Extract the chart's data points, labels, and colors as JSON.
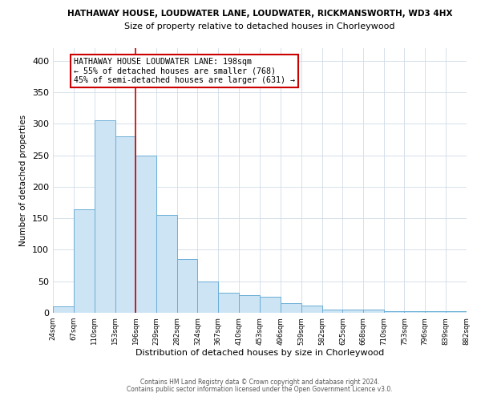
{
  "title": "HATHAWAY HOUSE, LOUDWATER LANE, LOUDWATER, RICKMANSWORTH, WD3 4HX",
  "subtitle": "Size of property relative to detached houses in Chorleywood",
  "xlabel": "Distribution of detached houses by size in Chorleywood",
  "ylabel": "Number of detached properties",
  "bar_edges": [
    24,
    67,
    110,
    153,
    196,
    239,
    282,
    324,
    367,
    410,
    453,
    496,
    539,
    582,
    625,
    668,
    710,
    753,
    796,
    839,
    882
  ],
  "bar_heights": [
    10,
    164,
    305,
    280,
    250,
    155,
    85,
    50,
    32,
    28,
    25,
    15,
    11,
    5,
    5,
    5,
    2,
    2,
    2,
    2
  ],
  "bar_color": "#cce4f4",
  "bar_edge_color": "#6baed6",
  "marker_x": 196,
  "marker_color": "#cc0000",
  "ylim": [
    0,
    420
  ],
  "xlim": [
    24,
    882
  ],
  "yticks": [
    0,
    50,
    100,
    150,
    200,
    250,
    300,
    350,
    400
  ],
  "annotation_title": "HATHAWAY HOUSE LOUDWATER LANE: 198sqm",
  "annotation_line1": "← 55% of detached houses are smaller (768)",
  "annotation_line2": "45% of semi-detached houses are larger (631) →",
  "annotation_box_color": "#ffffff",
  "annotation_box_edge": "#cc0000",
  "footer1": "Contains HM Land Registry data © Crown copyright and database right 2024.",
  "footer2": "Contains public sector information licensed under the Open Government Licence v3.0.",
  "tick_labels": [
    "24sqm",
    "67sqm",
    "110sqm",
    "153sqm",
    "196sqm",
    "239sqm",
    "282sqm",
    "324sqm",
    "367sqm",
    "410sqm",
    "453sqm",
    "496sqm",
    "539sqm",
    "582sqm",
    "625sqm",
    "668sqm",
    "710sqm",
    "753sqm",
    "796sqm",
    "839sqm",
    "882sqm"
  ],
  "background_color": "#ffffff",
  "grid_color": "#d0dce8"
}
